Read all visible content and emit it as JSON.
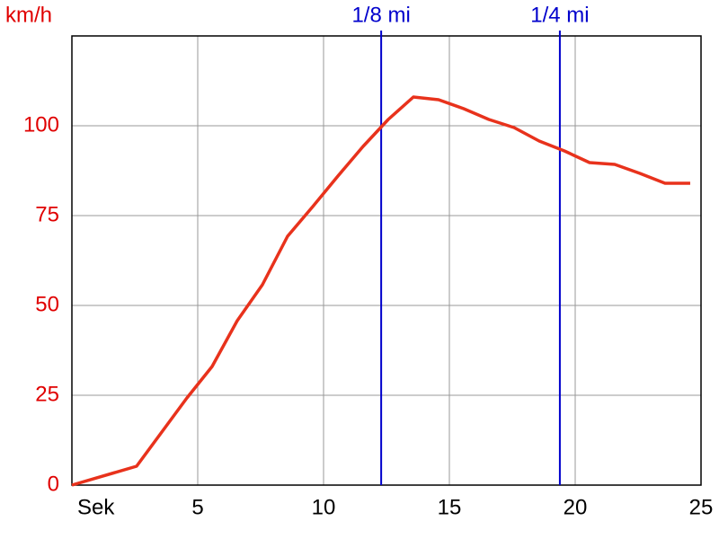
{
  "chart_data": {
    "type": "line",
    "y_label": "km/h",
    "x_label": "Sek",
    "x": [
      0,
      2.57,
      4.57,
      5.57,
      6.57,
      7.57,
      8.57,
      9.57,
      10.57,
      11.57,
      12.57,
      13.57,
      14.57,
      15.57,
      16.57,
      17.57,
      18.57,
      19.57,
      20.57,
      21.57,
      22.57,
      23.57,
      24.57
    ],
    "series": [
      {
        "name": "km/h",
        "color": "#e8321c",
        "values": [
          0,
          5.25,
          24.25,
          33,
          45.75,
          55.75,
          69.25,
          77.5,
          86,
          94.25,
          101.75,
          108,
          107.25,
          104.75,
          101.75,
          99.5,
          95.75,
          93,
          89.75,
          89.25,
          86.75,
          84,
          84
        ]
      }
    ],
    "xlim": [
      0,
      25
    ],
    "xticks": [
      5,
      10,
      15,
      20,
      25
    ],
    "ylim": [
      0,
      125
    ],
    "yticks": [
      0,
      25,
      50,
      75,
      100
    ],
    "grid": true,
    "axis_label_color": "#e00000",
    "markers": [
      {
        "label": "1/8 mi",
        "x": 12.29,
        "color": "#0000cc"
      },
      {
        "label": "1/4 mi",
        "x": 19.39,
        "color": "#0000cc"
      }
    ]
  }
}
